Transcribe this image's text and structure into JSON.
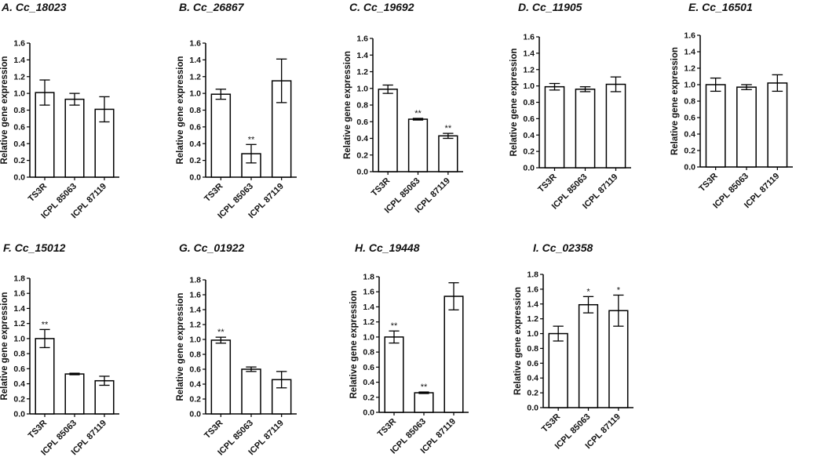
{
  "figure": {
    "colors": {
      "bar_fill": "#ffffff",
      "stroke": "#000000",
      "text": "#111111"
    }
  },
  "chart_data": [
    {
      "id": "A",
      "type": "bar",
      "title": "A. Cc_18023",
      "ylabel": "Relative gene expression",
      "ylim": [
        0,
        1.6
      ],
      "yticks": [
        "0.0",
        "0.2",
        "0.4",
        "0.6",
        "0.8",
        "1.0",
        "1.2",
        "1.4",
        "1.6"
      ],
      "categories": [
        "TS3R",
        "ICPL 85063",
        "ICPL 87119"
      ],
      "values": [
        1.01,
        0.93,
        0.81
      ],
      "errors": [
        0.15,
        0.07,
        0.15
      ],
      "significance": [
        "",
        "",
        ""
      ]
    },
    {
      "id": "B",
      "type": "bar",
      "title": "B. Cc_26867",
      "ylabel": "Relative gene expression",
      "ylim": [
        0,
        1.6
      ],
      "yticks": [
        "0.0",
        "0.2",
        "0.4",
        "0.6",
        "0.8",
        "1.0",
        "1.2",
        "1.4",
        "1.6"
      ],
      "categories": [
        "TS3R",
        "ICPL 85063",
        "ICPL 87119"
      ],
      "values": [
        0.99,
        0.28,
        1.15
      ],
      "errors": [
        0.06,
        0.11,
        0.26
      ],
      "significance": [
        "",
        "**",
        ""
      ]
    },
    {
      "id": "C",
      "type": "bar",
      "title": "C. Cc_19692",
      "ylabel": "Relative gene expression",
      "ylim": [
        0,
        1.6
      ],
      "yticks": [
        "0.0",
        "0.2",
        "0.4",
        "0.6",
        "0.8",
        "1.0",
        "1.2",
        "1.4",
        "1.6"
      ],
      "categories": [
        "TS3R",
        "ICPL 85063",
        "ICPL 87119"
      ],
      "values": [
        0.99,
        0.63,
        0.43
      ],
      "errors": [
        0.05,
        0.01,
        0.03
      ],
      "significance": [
        "",
        "**",
        "**"
      ]
    },
    {
      "id": "D",
      "type": "bar",
      "title": "D. Cc_11905",
      "ylabel": "Relative gene expression",
      "ylim": [
        0,
        1.6
      ],
      "yticks": [
        "0.0",
        "0.2",
        "0.4",
        "0.6",
        "0.8",
        "1.0",
        "1.2",
        "1.4",
        "1.6"
      ],
      "categories": [
        "TS3R",
        "ICPL 85063",
        "ICPL 87119"
      ],
      "values": [
        0.99,
        0.96,
        1.02
      ],
      "errors": [
        0.04,
        0.03,
        0.09
      ],
      "significance": [
        "",
        "",
        ""
      ]
    },
    {
      "id": "E",
      "type": "bar",
      "title": "E. Cc_16501",
      "ylabel": "Relative gene expression",
      "ylim": [
        0,
        1.6
      ],
      "yticks": [
        "0.0",
        "0.2",
        "0.4",
        "0.6",
        "0.8",
        "1.0",
        "1.2",
        "1.4",
        "1.6"
      ],
      "categories": [
        "TS3R",
        "ICPL 85063",
        "ICPL 87119"
      ],
      "values": [
        1.0,
        0.97,
        1.02
      ],
      "errors": [
        0.08,
        0.03,
        0.1
      ],
      "significance": [
        "",
        "",
        ""
      ]
    },
    {
      "id": "F",
      "type": "bar",
      "title": "F. Cc_15012",
      "ylabel": "Relative gene expression",
      "ylim": [
        0,
        1.8
      ],
      "yticks": [
        "0.0",
        "0.2",
        "0.4",
        "0.6",
        "0.8",
        "1.0",
        "1.2",
        "1.4",
        "1.6",
        "1.8"
      ],
      "categories": [
        "TS3R",
        "ICPL 85063",
        "ICPL 87119"
      ],
      "values": [
        1.0,
        0.53,
        0.44
      ],
      "errors": [
        0.12,
        0.01,
        0.06
      ],
      "significance": [
        "**",
        "",
        ""
      ]
    },
    {
      "id": "G",
      "type": "bar",
      "title": "G. Cc_01922",
      "ylabel": "Relative gene expression",
      "ylim": [
        0,
        1.8
      ],
      "yticks": [
        "0.0",
        "0.2",
        "0.4",
        "0.6",
        "0.8",
        "1.0",
        "1.2",
        "1.4",
        "1.6",
        "1.8"
      ],
      "categories": [
        "TS3R",
        "ICPL 85063",
        "ICPL 87119"
      ],
      "values": [
        0.99,
        0.6,
        0.46
      ],
      "errors": [
        0.04,
        0.03,
        0.11
      ],
      "significance": [
        "**",
        "",
        ""
      ]
    },
    {
      "id": "H",
      "type": "bar",
      "title": "H. Cc_19448",
      "ylabel": "Relative gene expression",
      "ylim": [
        0,
        1.8
      ],
      "yticks": [
        "0.0",
        "0.2",
        "0.4",
        "0.6",
        "0.8",
        "1.0",
        "1.2",
        "1.4",
        "1.6",
        "1.8"
      ],
      "categories": [
        "TS3R",
        "ICPL 85063",
        "ICPL 87119"
      ],
      "values": [
        1.0,
        0.26,
        1.54
      ],
      "errors": [
        0.08,
        0.01,
        0.18
      ],
      "significance": [
        "**",
        "**",
        ""
      ]
    },
    {
      "id": "I",
      "type": "bar",
      "title": "I. Cc_02358",
      "ylabel": "Relative gene expression",
      "ylim": [
        0,
        1.8
      ],
      "yticks": [
        "0.0",
        "0.2",
        "0.4",
        "0.6",
        "0.8",
        "1.0",
        "1.2",
        "1.4",
        "1.6",
        "1.8"
      ],
      "categories": [
        "TS3R",
        "ICPL 85063",
        "ICPL 87119"
      ],
      "values": [
        1.0,
        1.39,
        1.31
      ],
      "errors": [
        0.1,
        0.11,
        0.21
      ],
      "significance": [
        "",
        "*",
        "*"
      ]
    }
  ]
}
